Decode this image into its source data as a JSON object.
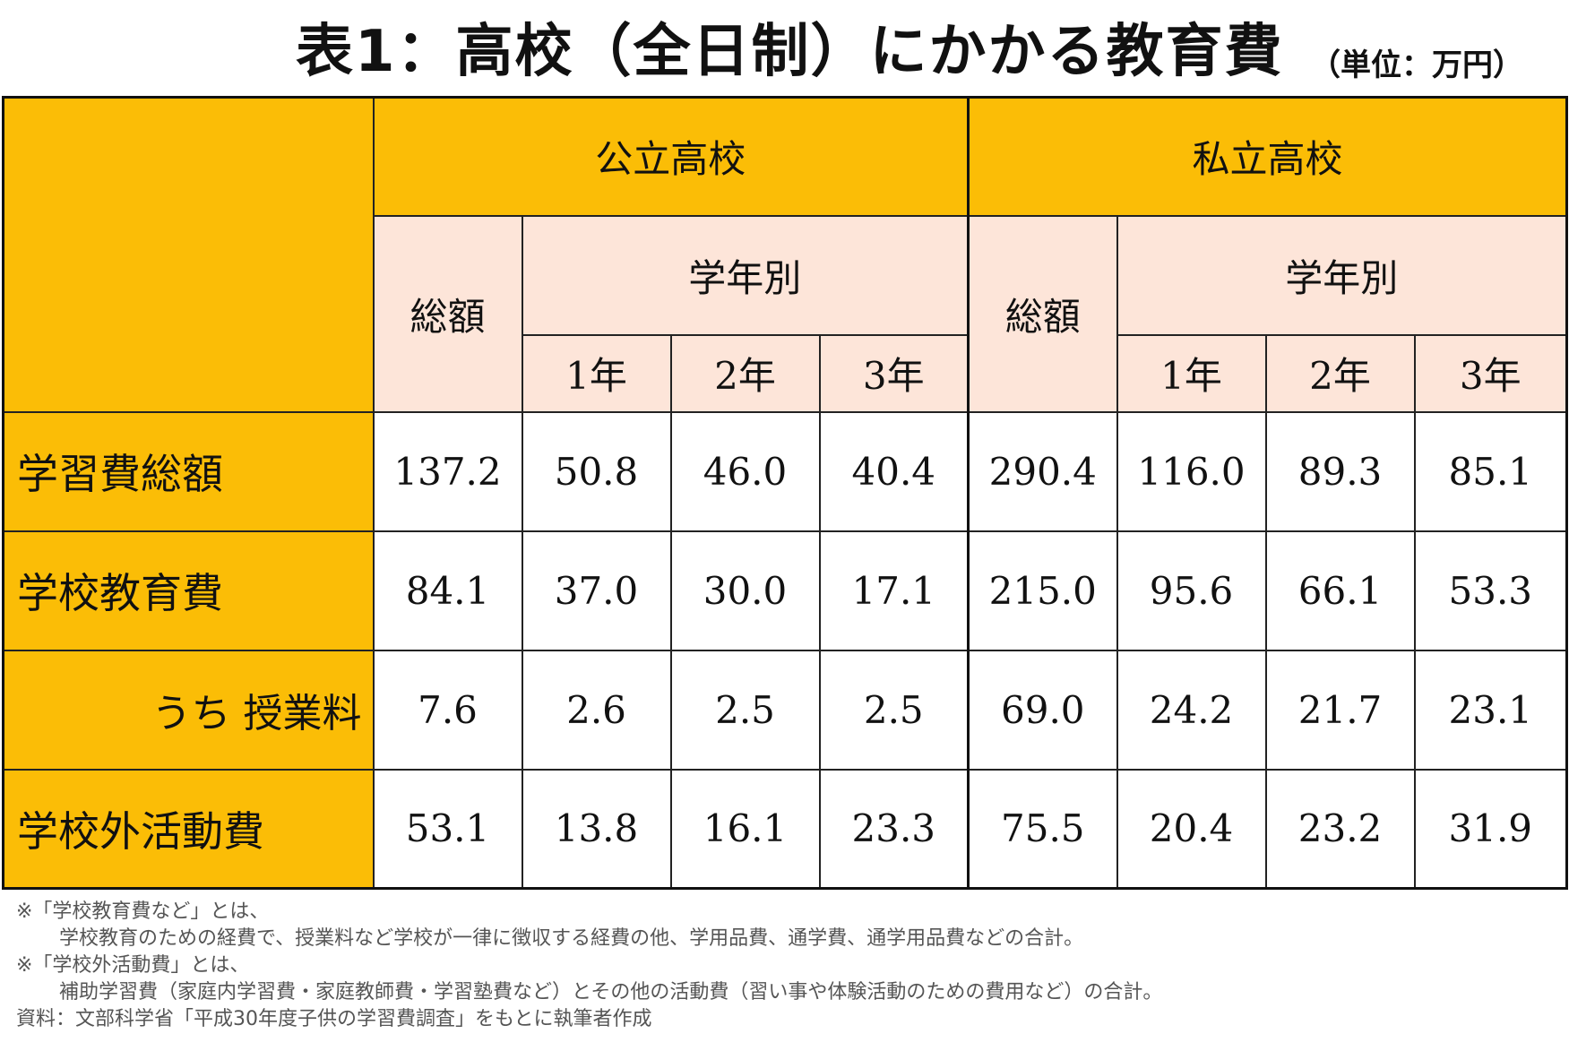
{
  "title": "表1：高校（全日制）にかかる教育費",
  "unit": "（単位：万円）",
  "header": {
    "public": "公立高校",
    "private": "私立高校",
    "total": "総額",
    "by_grade": "学年別",
    "grades": [
      "1年",
      "2年",
      "3年"
    ]
  },
  "rows": [
    {
      "label": "学習費総額",
      "values": [
        "137.2",
        "50.8",
        "46.0",
        "40.4",
        "290.4",
        "116.0",
        "89.3",
        "85.1"
      ]
    },
    {
      "label": "学校教育費",
      "values": [
        "84.1",
        "37.0",
        "30.0",
        "17.1",
        "215.0",
        "95.6",
        "66.1",
        "53.3"
      ]
    },
    {
      "label": "うち 授業料",
      "values": [
        "7.6",
        "2.6",
        "2.5",
        "2.5",
        "69.0",
        "24.2",
        "21.7",
        "23.1"
      ]
    },
    {
      "label": "学校外活動費",
      "values": [
        "53.1",
        "13.8",
        "16.1",
        "23.3",
        "75.5",
        "20.4",
        "23.2",
        "31.9"
      ]
    }
  ],
  "notes": [
    "※「学校教育費など」とは、",
    "学校教育のための経費で、授業料など学校が一律に徴収する経費の他、学用品費、通学費、通学用品費などの合計。",
    "※「学校外活動費」とは、",
    "補助学習費（家庭内学習費・家庭教師費・学習塾費など）とその他の活動費（習い事や体験活動のための費用など）の合計。",
    "資料：文部科学省「平成30年度子供の学習費調査」をもとに執筆者作成"
  ]
}
